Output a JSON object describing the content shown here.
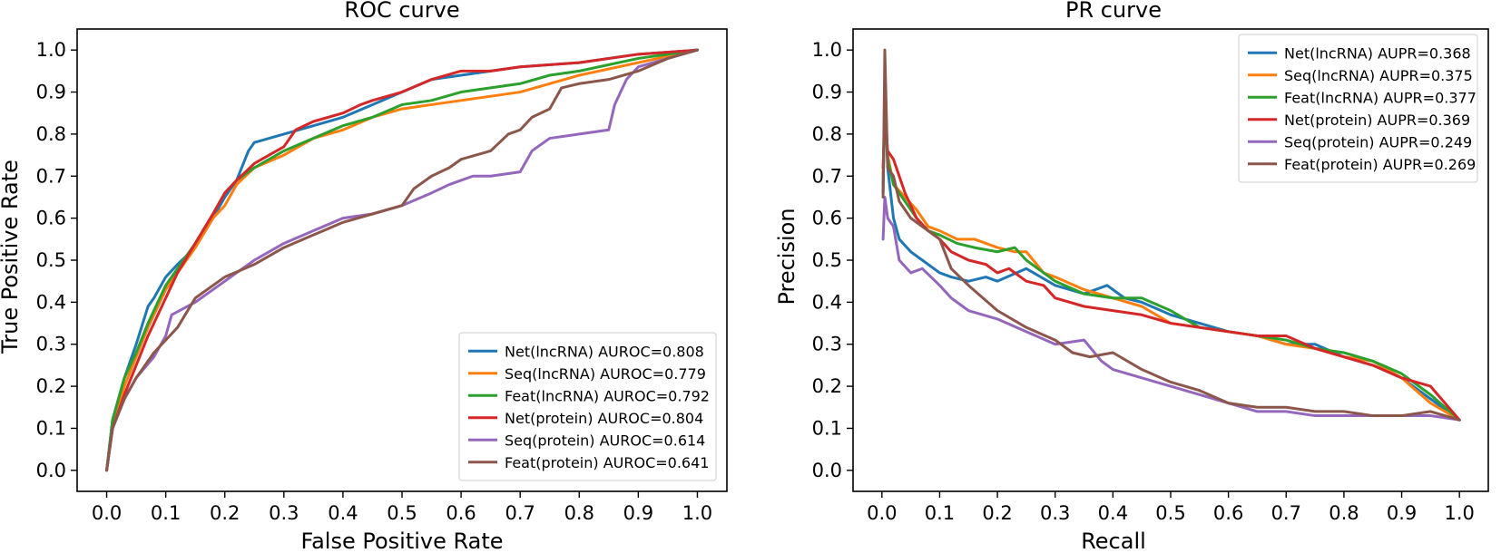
{
  "chart_data": [
    {
      "type": "line",
      "title": "ROC curve",
      "xlabel": "False Positive Rate",
      "ylabel": "True Positive Rate",
      "xlim": [
        -0.05,
        1.05
      ],
      "ylim": [
        -0.05,
        1.05
      ],
      "xticks": [
        "0.0",
        "0.1",
        "0.2",
        "0.3",
        "0.4",
        "0.5",
        "0.6",
        "0.7",
        "0.8",
        "0.9",
        "1.0"
      ],
      "yticks": [
        "0.0",
        "0.1",
        "0.2",
        "0.3",
        "0.4",
        "0.5",
        "0.6",
        "0.7",
        "0.8",
        "0.9",
        "1.0"
      ],
      "legend_position": "lower right",
      "series": [
        {
          "name": "Net(lncRNA) AUROC=0.808",
          "color": "#1f77b4",
          "x": [
            0,
            0.01,
            0.03,
            0.05,
            0.07,
            0.08,
            0.1,
            0.12,
            0.15,
            0.18,
            0.2,
            0.22,
            0.24,
            0.25,
            0.3,
            0.35,
            0.4,
            0.45,
            0.5,
            0.55,
            0.6,
            0.65,
            0.7,
            0.8,
            0.9,
            1.0
          ],
          "y": [
            0,
            0.12,
            0.22,
            0.3,
            0.39,
            0.41,
            0.46,
            0.49,
            0.53,
            0.6,
            0.65,
            0.69,
            0.76,
            0.78,
            0.8,
            0.82,
            0.84,
            0.87,
            0.9,
            0.93,
            0.94,
            0.95,
            0.96,
            0.97,
            0.99,
            1.0
          ]
        },
        {
          "name": "Seq(lncRNA) AUROC=0.779",
          "color": "#ff7f0e",
          "x": [
            0,
            0.01,
            0.03,
            0.05,
            0.07,
            0.1,
            0.12,
            0.15,
            0.18,
            0.2,
            0.22,
            0.25,
            0.3,
            0.35,
            0.4,
            0.45,
            0.5,
            0.55,
            0.6,
            0.65,
            0.7,
            0.75,
            0.8,
            0.9,
            1.0
          ],
          "y": [
            0,
            0.11,
            0.2,
            0.27,
            0.34,
            0.43,
            0.47,
            0.53,
            0.6,
            0.63,
            0.68,
            0.72,
            0.75,
            0.79,
            0.81,
            0.84,
            0.86,
            0.87,
            0.88,
            0.89,
            0.9,
            0.92,
            0.94,
            0.97,
            1.0
          ]
        },
        {
          "name": "Feat(lncRNA) AUROC=0.792",
          "color": "#2ca02c",
          "x": [
            0,
            0.01,
            0.03,
            0.05,
            0.07,
            0.1,
            0.12,
            0.15,
            0.18,
            0.2,
            0.22,
            0.25,
            0.3,
            0.35,
            0.4,
            0.45,
            0.5,
            0.55,
            0.6,
            0.65,
            0.7,
            0.75,
            0.8,
            0.9,
            1.0
          ],
          "y": [
            0,
            0.12,
            0.22,
            0.28,
            0.35,
            0.44,
            0.48,
            0.54,
            0.61,
            0.66,
            0.69,
            0.72,
            0.76,
            0.79,
            0.82,
            0.84,
            0.87,
            0.88,
            0.9,
            0.91,
            0.92,
            0.94,
            0.95,
            0.98,
            1.0
          ]
        },
        {
          "name": "Net(protein) AUROC=0.804",
          "color": "#d62728",
          "x": [
            0,
            0.01,
            0.03,
            0.05,
            0.07,
            0.1,
            0.12,
            0.15,
            0.18,
            0.2,
            0.22,
            0.25,
            0.3,
            0.32,
            0.35,
            0.4,
            0.43,
            0.45,
            0.5,
            0.55,
            0.6,
            0.65,
            0.7,
            0.8,
            0.9,
            1.0
          ],
          "y": [
            0,
            0.1,
            0.18,
            0.25,
            0.32,
            0.41,
            0.47,
            0.54,
            0.61,
            0.66,
            0.69,
            0.73,
            0.77,
            0.81,
            0.83,
            0.85,
            0.87,
            0.88,
            0.9,
            0.93,
            0.95,
            0.95,
            0.96,
            0.97,
            0.99,
            1.0
          ]
        },
        {
          "name": "Seq(protein) AUROC=0.614",
          "color": "#9467bd",
          "x": [
            0,
            0.01,
            0.03,
            0.05,
            0.08,
            0.1,
            0.11,
            0.15,
            0.2,
            0.25,
            0.3,
            0.35,
            0.4,
            0.45,
            0.5,
            0.55,
            0.58,
            0.6,
            0.62,
            0.65,
            0.7,
            0.72,
            0.75,
            0.8,
            0.85,
            0.86,
            0.88,
            0.9,
            0.95,
            1.0
          ],
          "y": [
            0,
            0.1,
            0.17,
            0.22,
            0.27,
            0.32,
            0.37,
            0.4,
            0.45,
            0.5,
            0.54,
            0.57,
            0.6,
            0.61,
            0.63,
            0.66,
            0.68,
            0.69,
            0.7,
            0.7,
            0.71,
            0.76,
            0.79,
            0.8,
            0.81,
            0.87,
            0.93,
            0.96,
            0.98,
            1.0
          ]
        },
        {
          "name": "Feat(protein) AUROC=0.641",
          "color": "#8c564b",
          "x": [
            0,
            0.01,
            0.03,
            0.05,
            0.08,
            0.1,
            0.12,
            0.15,
            0.2,
            0.25,
            0.3,
            0.35,
            0.4,
            0.45,
            0.5,
            0.52,
            0.55,
            0.58,
            0.6,
            0.65,
            0.68,
            0.7,
            0.72,
            0.75,
            0.77,
            0.8,
            0.85,
            0.9,
            0.95,
            1.0
          ],
          "y": [
            0,
            0.1,
            0.17,
            0.22,
            0.28,
            0.31,
            0.34,
            0.41,
            0.46,
            0.49,
            0.53,
            0.56,
            0.59,
            0.61,
            0.63,
            0.67,
            0.7,
            0.72,
            0.74,
            0.76,
            0.8,
            0.81,
            0.84,
            0.86,
            0.91,
            0.92,
            0.93,
            0.95,
            0.98,
            1.0
          ]
        }
      ]
    },
    {
      "type": "line",
      "title": "PR curve",
      "xlabel": "Recall",
      "ylabel": "Precision",
      "xlim": [
        -0.05,
        1.05
      ],
      "ylim": [
        -0.05,
        1.05
      ],
      "xticks": [
        "0.0",
        "0.1",
        "0.2",
        "0.3",
        "0.4",
        "0.5",
        "0.6",
        "0.7",
        "0.8",
        "0.9",
        "1.0"
      ],
      "yticks": [
        "0.0",
        "0.1",
        "0.2",
        "0.3",
        "0.4",
        "0.5",
        "0.6",
        "0.7",
        "0.8",
        "0.9",
        "1.0"
      ],
      "legend_position": "upper right",
      "series": [
        {
          "name": "Net(lncRNA) AUPR=0.368",
          "color": "#1f77b4",
          "x": [
            0.002,
            0.005,
            0.01,
            0.02,
            0.03,
            0.05,
            0.07,
            0.1,
            0.12,
            0.15,
            0.18,
            0.2,
            0.25,
            0.3,
            0.35,
            0.39,
            0.42,
            0.45,
            0.5,
            0.55,
            0.6,
            0.65,
            0.7,
            0.75,
            0.8,
            0.85,
            0.9,
            0.95,
            1.0
          ],
          "y": [
            0.66,
            0.89,
            0.72,
            0.6,
            0.55,
            0.52,
            0.5,
            0.47,
            0.46,
            0.45,
            0.46,
            0.45,
            0.48,
            0.44,
            0.42,
            0.44,
            0.41,
            0.4,
            0.37,
            0.35,
            0.33,
            0.32,
            0.3,
            0.3,
            0.27,
            0.25,
            0.22,
            0.17,
            0.12
          ]
        },
        {
          "name": "Seq(lncRNA) AUPR=0.375",
          "color": "#ff7f0e",
          "x": [
            0.002,
            0.005,
            0.01,
            0.02,
            0.04,
            0.06,
            0.08,
            0.1,
            0.13,
            0.16,
            0.2,
            0.23,
            0.25,
            0.28,
            0.3,
            0.35,
            0.4,
            0.45,
            0.5,
            0.55,
            0.6,
            0.65,
            0.7,
            0.75,
            0.8,
            0.85,
            0.9,
            0.95,
            1.0
          ],
          "y": [
            0.7,
            0.88,
            0.75,
            0.68,
            0.65,
            0.62,
            0.58,
            0.57,
            0.55,
            0.55,
            0.53,
            0.52,
            0.52,
            0.47,
            0.46,
            0.43,
            0.41,
            0.39,
            0.35,
            0.34,
            0.33,
            0.32,
            0.3,
            0.29,
            0.27,
            0.26,
            0.22,
            0.16,
            0.12
          ]
        },
        {
          "name": "Feat(lncRNA) AUPR=0.377",
          "color": "#2ca02c",
          "x": [
            0.002,
            0.005,
            0.01,
            0.02,
            0.04,
            0.06,
            0.08,
            0.1,
            0.13,
            0.16,
            0.2,
            0.23,
            0.25,
            0.28,
            0.3,
            0.35,
            0.4,
            0.45,
            0.5,
            0.55,
            0.6,
            0.65,
            0.7,
            0.75,
            0.8,
            0.85,
            0.9,
            0.95,
            1.0
          ],
          "y": [
            0.68,
            0.86,
            0.74,
            0.68,
            0.64,
            0.6,
            0.57,
            0.56,
            0.54,
            0.53,
            0.52,
            0.53,
            0.5,
            0.47,
            0.45,
            0.42,
            0.41,
            0.41,
            0.38,
            0.34,
            0.33,
            0.32,
            0.31,
            0.29,
            0.28,
            0.26,
            0.23,
            0.18,
            0.12
          ]
        },
        {
          "name": "Net(protein) AUPR=0.369",
          "color": "#d62728",
          "x": [
            0.002,
            0.005,
            0.01,
            0.02,
            0.04,
            0.06,
            0.08,
            0.1,
            0.12,
            0.15,
            0.18,
            0.2,
            0.22,
            0.25,
            0.28,
            0.3,
            0.35,
            0.4,
            0.45,
            0.5,
            0.55,
            0.6,
            0.65,
            0.7,
            0.75,
            0.8,
            0.85,
            0.9,
            0.95,
            1.0
          ],
          "y": [
            0.72,
            0.85,
            0.76,
            0.74,
            0.66,
            0.6,
            0.57,
            0.55,
            0.52,
            0.5,
            0.49,
            0.47,
            0.48,
            0.45,
            0.44,
            0.41,
            0.39,
            0.38,
            0.37,
            0.35,
            0.34,
            0.33,
            0.32,
            0.32,
            0.29,
            0.27,
            0.25,
            0.22,
            0.2,
            0.12
          ]
        },
        {
          "name": "Seq(protein) AUPR=0.249",
          "color": "#9467bd",
          "x": [
            0.002,
            0.005,
            0.01,
            0.02,
            0.03,
            0.05,
            0.07,
            0.1,
            0.12,
            0.15,
            0.2,
            0.25,
            0.3,
            0.35,
            0.38,
            0.4,
            0.45,
            0.5,
            0.55,
            0.6,
            0.65,
            0.7,
            0.75,
            0.8,
            0.85,
            0.9,
            0.95,
            1.0
          ],
          "y": [
            0.55,
            0.65,
            0.6,
            0.58,
            0.5,
            0.47,
            0.48,
            0.44,
            0.41,
            0.38,
            0.36,
            0.33,
            0.3,
            0.31,
            0.26,
            0.24,
            0.22,
            0.2,
            0.18,
            0.16,
            0.14,
            0.14,
            0.13,
            0.13,
            0.13,
            0.13,
            0.13,
            0.12
          ]
        },
        {
          "name": "Feat(protein) AUPR=0.269",
          "color": "#8c564b",
          "x": [
            0.002,
            0.005,
            0.01,
            0.02,
            0.03,
            0.05,
            0.07,
            0.1,
            0.12,
            0.15,
            0.2,
            0.25,
            0.3,
            0.33,
            0.36,
            0.4,
            0.45,
            0.5,
            0.55,
            0.6,
            0.65,
            0.7,
            0.75,
            0.8,
            0.85,
            0.9,
            0.95,
            1.0
          ],
          "y": [
            0.65,
            1.0,
            0.72,
            0.7,
            0.64,
            0.6,
            0.58,
            0.55,
            0.48,
            0.44,
            0.38,
            0.34,
            0.31,
            0.28,
            0.27,
            0.28,
            0.24,
            0.21,
            0.19,
            0.16,
            0.15,
            0.15,
            0.14,
            0.14,
            0.13,
            0.13,
            0.14,
            0.12
          ]
        }
      ]
    }
  ]
}
